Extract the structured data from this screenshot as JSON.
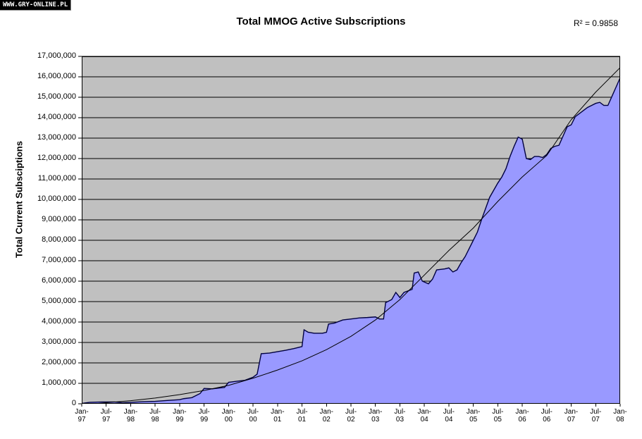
{
  "watermark": {
    "text": "WWW.GRY-ONLINE.PL"
  },
  "header": {
    "title": "Total MMOG Active Subscriptions",
    "r2_annotation": "R² = 0.9858"
  },
  "y_axis": {
    "title": "Total Current Subsciptions",
    "tick_labels": [
      "17,000,000",
      "16,000,000",
      "15,000,000",
      "14,000,000",
      "13,000,000",
      "12,000,000",
      "11,000,000",
      "10,000,000",
      "9,000,000",
      "8,000,000",
      "7,000,000",
      "6,000,000",
      "5,000,000",
      "4,000,000",
      "3,000,000",
      "2,000,000",
      "1,000,000",
      "0"
    ]
  },
  "x_axis": {
    "tick_labels": [
      {
        "line1": "Jan-",
        "line2": "97"
      },
      {
        "line1": "Jul-",
        "line2": "97"
      },
      {
        "line1": "Jan-",
        "line2": "98"
      },
      {
        "line1": "Jul-",
        "line2": "98"
      },
      {
        "line1": "Jan-",
        "line2": "99"
      },
      {
        "line1": "Jul-",
        "line2": "99"
      },
      {
        "line1": "Jan-",
        "line2": "00"
      },
      {
        "line1": "Jul-",
        "line2": "00"
      },
      {
        "line1": "Jan-",
        "line2": "01"
      },
      {
        "line1": "Jul-",
        "line2": "01"
      },
      {
        "line1": "Jan-",
        "line2": "02"
      },
      {
        "line1": "Jul-",
        "line2": "02"
      },
      {
        "line1": "Jan-",
        "line2": "03"
      },
      {
        "line1": "Jul-",
        "line2": "03"
      },
      {
        "line1": "Jan-",
        "line2": "04"
      },
      {
        "line1": "Jul-",
        "line2": "04"
      },
      {
        "line1": "Jan-",
        "line2": "05"
      },
      {
        "line1": "Jul-",
        "line2": "05"
      },
      {
        "line1": "Jan-",
        "line2": "06"
      },
      {
        "line1": "Jul-",
        "line2": "06"
      },
      {
        "line1": "Jan-",
        "line2": "07"
      },
      {
        "line1": "Jul-",
        "line2": "07"
      },
      {
        "line1": "Jan-",
        "line2": "08"
      }
    ]
  },
  "colors": {
    "page_background": "#ffffff",
    "plot_background": "#c0c0c0",
    "gridline": "#000000",
    "axis": "#000000",
    "area_fill": "#9999ff",
    "area_border": "#000040",
    "trend_line": "#000000",
    "watermark_bg": "#000000",
    "watermark_text": "#ffffff"
  },
  "chart_data": {
    "type": "area",
    "title": "Total MMOG Active Subscriptions",
    "xlabel": "",
    "ylabel": "Total Current Subsciptions",
    "ylim": [
      0,
      17000000
    ],
    "x_unit": "months since Jan-1997",
    "x_range_months": [
      0,
      132
    ],
    "x_tick_step_months": 6,
    "grid": "horizontal-only",
    "legend": "none",
    "r_squared": 0.9858,
    "series": [
      {
        "name": "Total MMOG active subscriptions",
        "style": "filled-area",
        "points": [
          [
            0,
            20000
          ],
          [
            2,
            70000
          ],
          [
            5,
            90000
          ],
          [
            8,
            90000
          ],
          [
            10,
            50000
          ],
          [
            12,
            70000
          ],
          [
            15,
            100000
          ],
          [
            18,
            120000
          ],
          [
            21,
            160000
          ],
          [
            24,
            200000
          ],
          [
            25,
            250000
          ],
          [
            27,
            300000
          ],
          [
            29,
            500000
          ],
          [
            30,
            750000
          ],
          [
            32,
            730000
          ],
          [
            34,
            780000
          ],
          [
            35,
            800000
          ],
          [
            36,
            1050000
          ],
          [
            38,
            1100000
          ],
          [
            40,
            1150000
          ],
          [
            42,
            1300000
          ],
          [
            43,
            1450000
          ],
          [
            44,
            2450000
          ],
          [
            46,
            2480000
          ],
          [
            48,
            2550000
          ],
          [
            50,
            2620000
          ],
          [
            52,
            2700000
          ],
          [
            54,
            2800000
          ],
          [
            54.5,
            3620000
          ],
          [
            55.5,
            3500000
          ],
          [
            57,
            3450000
          ],
          [
            59,
            3450000
          ],
          [
            60,
            3500000
          ],
          [
            60.5,
            3900000
          ],
          [
            62,
            3950000
          ],
          [
            64,
            4100000
          ],
          [
            66,
            4150000
          ],
          [
            68,
            4200000
          ],
          [
            70,
            4220000
          ],
          [
            72,
            4250000
          ],
          [
            73,
            4150000
          ],
          [
            74,
            4150000
          ],
          [
            74.5,
            4950000
          ],
          [
            76,
            5100000
          ],
          [
            77,
            5450000
          ],
          [
            78,
            5200000
          ],
          [
            79,
            5450000
          ],
          [
            81,
            5600000
          ],
          [
            81.5,
            6400000
          ],
          [
            82.5,
            6450000
          ],
          [
            83.5,
            6000000
          ],
          [
            85,
            5870000
          ],
          [
            86,
            6100000
          ],
          [
            87,
            6550000
          ],
          [
            89,
            6600000
          ],
          [
            90,
            6650000
          ],
          [
            91,
            6450000
          ],
          [
            92,
            6550000
          ],
          [
            93,
            6900000
          ],
          [
            94,
            7200000
          ],
          [
            95,
            7600000
          ],
          [
            96,
            8000000
          ],
          [
            97,
            8400000
          ],
          [
            98,
            9000000
          ],
          [
            100,
            10100000
          ],
          [
            102,
            10800000
          ],
          [
            103,
            11100000
          ],
          [
            104,
            11500000
          ],
          [
            105,
            12100000
          ],
          [
            106,
            12600000
          ],
          [
            107,
            13050000
          ],
          [
            108,
            12950000
          ],
          [
            109,
            12000000
          ],
          [
            110,
            11950000
          ],
          [
            111,
            12100000
          ],
          [
            112,
            12100000
          ],
          [
            113,
            12050000
          ],
          [
            114,
            12200000
          ],
          [
            115,
            12500000
          ],
          [
            116,
            12600000
          ],
          [
            117,
            12650000
          ],
          [
            118,
            13100000
          ],
          [
            119,
            13550000
          ],
          [
            120,
            13650000
          ],
          [
            121,
            14050000
          ],
          [
            122,
            14200000
          ],
          [
            123,
            14350000
          ],
          [
            124,
            14500000
          ],
          [
            125,
            14600000
          ],
          [
            126,
            14700000
          ],
          [
            127,
            14750000
          ],
          [
            128,
            14600000
          ],
          [
            129,
            14600000
          ],
          [
            130,
            15050000
          ],
          [
            131,
            15500000
          ],
          [
            132,
            15950000
          ]
        ]
      },
      {
        "name": "Polynomial trend line",
        "style": "thin-line",
        "points": [
          [
            0,
            -50000
          ],
          [
            6,
            50000
          ],
          [
            12,
            150000
          ],
          [
            18,
            280000
          ],
          [
            24,
            450000
          ],
          [
            30,
            650000
          ],
          [
            36,
            900000
          ],
          [
            42,
            1250000
          ],
          [
            48,
            1650000
          ],
          [
            54,
            2100000
          ],
          [
            60,
            2650000
          ],
          [
            66,
            3300000
          ],
          [
            72,
            4100000
          ],
          [
            78,
            5100000
          ],
          [
            84,
            6300000
          ],
          [
            90,
            7500000
          ],
          [
            96,
            8600000
          ],
          [
            102,
            9900000
          ],
          [
            108,
            11100000
          ],
          [
            114,
            12150000
          ],
          [
            120,
            13900000
          ],
          [
            126,
            15250000
          ],
          [
            132,
            16450000
          ]
        ]
      }
    ]
  }
}
